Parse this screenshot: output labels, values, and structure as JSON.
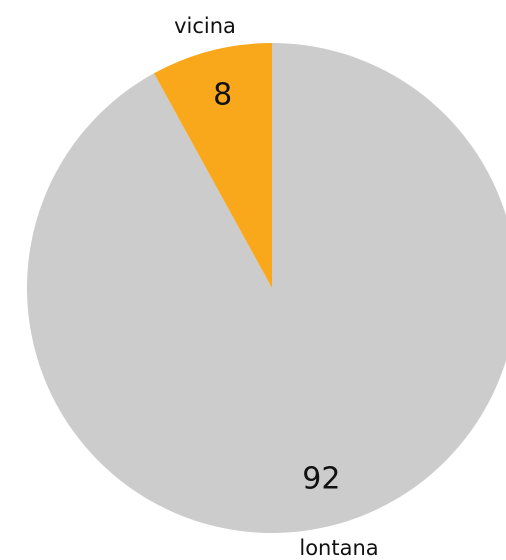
{
  "chart_data": {
    "type": "pie",
    "categories": [
      "lontana",
      "vicina"
    ],
    "values": [
      92,
      8
    ],
    "colors": [
      "#cccccc",
      "#f9a81b"
    ]
  }
}
